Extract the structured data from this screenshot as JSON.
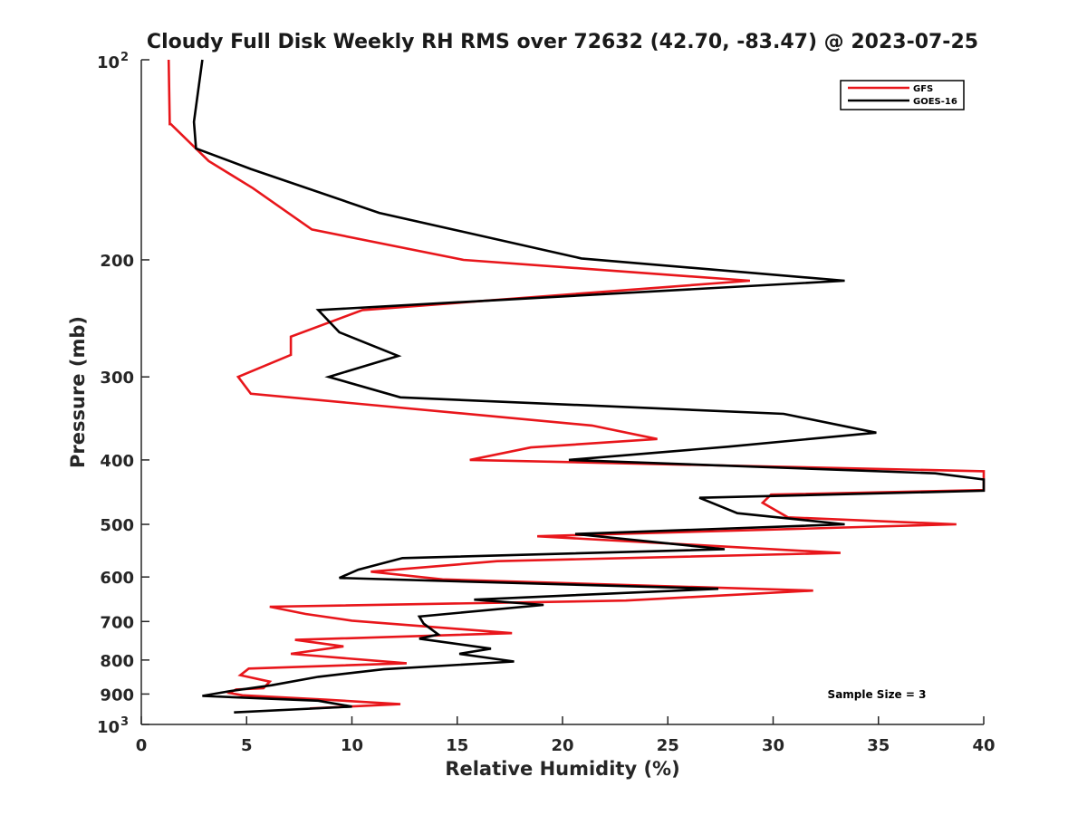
{
  "chart_data": {
    "type": "line",
    "title": "Cloudy Full Disk Weekly RH RMS over 72632 (42.70, -83.47) @ 2023-07-25",
    "xlabel": "Relative Humidity (%)",
    "ylabel": "Pressure (mb)",
    "xlim": [
      0,
      40
    ],
    "ylim": [
      100,
      1000
    ],
    "yscale": "log",
    "y_reversed": true,
    "grid": false,
    "legend_position": "top-right",
    "x_ticks": [
      "0",
      "5",
      "10",
      "15",
      "20",
      "25",
      "30",
      "35",
      "40"
    ],
    "y_ticks": [
      {
        "value": 100,
        "base": "10",
        "exp": "2"
      },
      {
        "value": 200,
        "label": "200"
      },
      {
        "value": 300,
        "label": "300"
      },
      {
        "value": 400,
        "label": "400"
      },
      {
        "value": 500,
        "label": "500"
      },
      {
        "value": 600,
        "label": "600"
      },
      {
        "value": 700,
        "label": "700"
      },
      {
        "value": 800,
        "label": "800"
      },
      {
        "value": 900,
        "label": "900"
      },
      {
        "value": 1000,
        "base": "10",
        "exp": "3"
      }
    ],
    "annotation": "Sample Size = 3",
    "series": [
      {
        "name": "GFS",
        "color": "#e8161b",
        "points": [
          [
            1.3,
            100
          ],
          [
            1.35,
            125
          ],
          [
            1.4,
            125
          ],
          [
            3.2,
            142
          ],
          [
            5.3,
            156
          ],
          [
            8.1,
            180
          ],
          [
            15.3,
            200
          ],
          [
            28.9,
            215
          ],
          [
            10.5,
            238
          ],
          [
            7.1,
            261
          ],
          [
            7.1,
            278
          ],
          [
            4.6,
            300
          ],
          [
            5.2,
            318
          ],
          [
            21.4,
            355
          ],
          [
            24.5,
            372
          ],
          [
            18.5,
            383
          ],
          [
            15.6,
            400
          ],
          [
            40,
            416
          ],
          [
            40,
            444
          ],
          [
            29.9,
            451
          ],
          [
            29.5,
            464
          ],
          [
            30.7,
            488
          ],
          [
            38.7,
            500
          ],
          [
            18.8,
            521
          ],
          [
            33.2,
            552
          ],
          [
            16.9,
            568
          ],
          [
            10.9,
            589
          ],
          [
            14.3,
            605
          ],
          [
            31.9,
            629
          ],
          [
            23,
            651
          ],
          [
            6.1,
            665
          ],
          [
            7.8,
            682
          ],
          [
            10,
            698
          ],
          [
            17.6,
            729
          ],
          [
            7.3,
            746
          ],
          [
            9.6,
            763
          ],
          [
            7.1,
            783
          ],
          [
            12.6,
            809
          ],
          [
            5.1,
            824
          ],
          [
            4.7,
            843
          ],
          [
            6.1,
            862
          ],
          [
            5.8,
            882
          ],
          [
            4.5,
            886
          ],
          [
            4.2,
            897
          ],
          [
            4.8,
            904
          ],
          [
            8.8,
            918
          ],
          [
            12.3,
            932
          ],
          [
            8,
            946
          ]
        ]
      },
      {
        "name": "GOES-16",
        "color": "#000000",
        "points": [
          [
            2.9,
            100
          ],
          [
            2.5,
            124
          ],
          [
            2.6,
            136
          ],
          [
            5.2,
            146
          ],
          [
            11.3,
            170
          ],
          [
            20.9,
            199
          ],
          [
            33.4,
            215
          ],
          [
            8.4,
            238
          ],
          [
            9.4,
            257
          ],
          [
            12.2,
            279
          ],
          [
            8.9,
            300
          ],
          [
            12.3,
            322
          ],
          [
            30.5,
            341
          ],
          [
            34.9,
            364
          ],
          [
            27.9,
            382
          ],
          [
            20.3,
            400
          ],
          [
            37.7,
            419
          ],
          [
            40,
            428
          ],
          [
            40,
            445
          ],
          [
            26.5,
            456
          ],
          [
            28.3,
            481
          ],
          [
            33.4,
            500
          ],
          [
            20.6,
            517
          ],
          [
            27.7,
            545
          ],
          [
            12.4,
            562
          ],
          [
            10.3,
            585
          ],
          [
            9.4,
            602
          ],
          [
            27.4,
            625
          ],
          [
            15.8,
            649
          ],
          [
            19.1,
            661
          ],
          [
            13.2,
            688
          ],
          [
            13.4,
            705
          ],
          [
            14.1,
            732
          ],
          [
            13.2,
            743
          ],
          [
            16.6,
            769
          ],
          [
            15.1,
            783
          ],
          [
            17.7,
            804
          ],
          [
            11.5,
            826
          ],
          [
            8.4,
            848
          ],
          [
            6.2,
            873
          ],
          [
            4.1,
            892
          ],
          [
            2.9,
            906
          ],
          [
            8.4,
            921
          ],
          [
            10,
            940
          ],
          [
            4.4,
            959
          ]
        ]
      }
    ]
  }
}
